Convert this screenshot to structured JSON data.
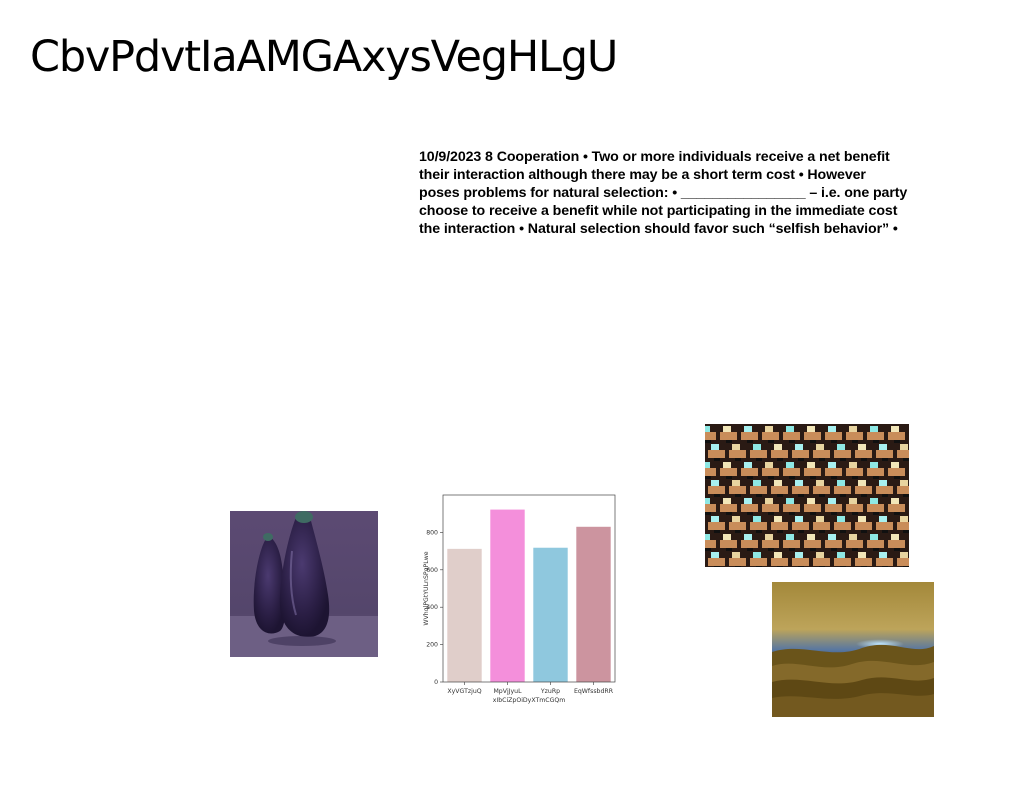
{
  "slide": {
    "title": "CbvPdvtIaAMGAxysVegHLgU",
    "body_lines": [
      "10/9/2023 8 Cooperation • Two or more individuals receive a net benefit",
      "their interaction although there may be a short term cost • However",
      "poses problems for natural selection: • ________________ – i.e. one party",
      "choose to receive a benefit while not participating in the immediate cost",
      "the interaction • Natural selection should favor such “selfish behavior” •"
    ]
  },
  "images": {
    "eggplant": "eggplant-vases-photo",
    "desks": "rows-of-computer-desks-photo",
    "seascape": "stormy-seascape-photo"
  },
  "chart_data": {
    "type": "bar",
    "categories": [
      "XyVGTzjuQ",
      "MpVjJyuL",
      "YzuRp",
      "EqWfssbdRR"
    ],
    "values": [
      712,
      922,
      718,
      830
    ],
    "colors": [
      "#e0ceca",
      "#f48fdb",
      "#8fc8de",
      "#cc949f"
    ],
    "xlabel": "xIbCiZpOiDyXTmCGQm",
    "ylabel": "WVhqlPGtYULnSPqPLwe",
    "ylim": [
      0,
      1000
    ],
    "yticks": [
      0,
      200,
      400,
      600,
      800
    ],
    "ytick_labels": [
      "0",
      "200",
      "400",
      "600",
      "800"
    ],
    "grid": false,
    "legend": "none"
  }
}
